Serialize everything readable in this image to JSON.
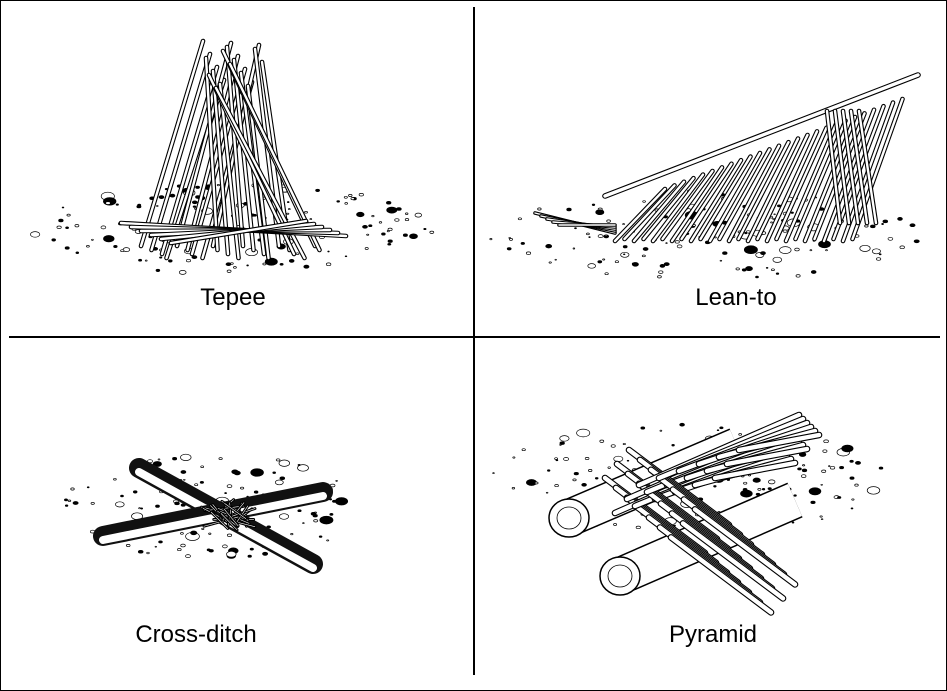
{
  "panels": [
    {
      "id": "tepee",
      "label": "Tepee",
      "illustration": "tepee-fire-lay"
    },
    {
      "id": "lean-to",
      "label": "Lean-to",
      "illustration": "lean-to-fire-lay"
    },
    {
      "id": "cross-ditch",
      "label": "Cross-ditch",
      "illustration": "cross-ditch-fire-lay"
    },
    {
      "id": "pyramid",
      "label": "Pyramid",
      "illustration": "pyramid-fire-lay"
    }
  ],
  "colors": {
    "ink": "#000000",
    "background": "#ffffff",
    "ditch": "#111111"
  }
}
